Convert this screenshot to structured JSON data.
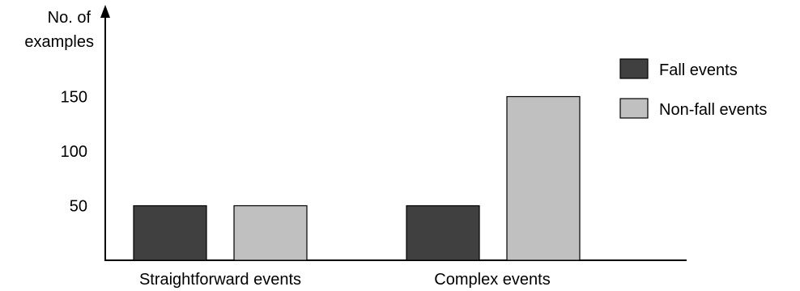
{
  "chart_data": {
    "type": "bar",
    "ylabel_lines": [
      "No. of",
      "examples"
    ],
    "categories": [
      "Straightforward events",
      "Complex events"
    ],
    "series": [
      {
        "name": "Fall events",
        "color": "#404040",
        "values": [
          50,
          50
        ]
      },
      {
        "name": "Non-fall events",
        "color": "#c0c0c0",
        "values": [
          50,
          150
        ]
      }
    ],
    "y_ticks": [
      "50",
      "100",
      "150"
    ],
    "ylim": [
      0,
      200
    ],
    "grid": false,
    "legend_position": "top-right"
  }
}
